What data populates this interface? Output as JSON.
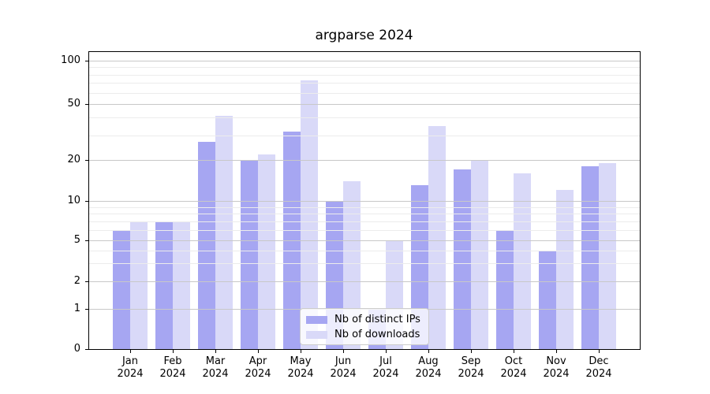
{
  "chart_data": {
    "type": "bar",
    "title": "argparse 2024",
    "categories": [
      "Jan",
      "Feb",
      "Mar",
      "Apr",
      "May",
      "Jun",
      "Jul",
      "Aug",
      "Sep",
      "Oct",
      "Nov",
      "Dec"
    ],
    "category_year": "2024",
    "series": [
      {
        "name": "Nb of distinct IPs",
        "color": "#a6a6f2",
        "values": [
          6,
          7,
          27,
          20,
          32,
          10,
          1,
          13,
          17,
          6,
          4,
          18
        ]
      },
      {
        "name": "Nb of downloads",
        "color": "#d9d9f8",
        "values": [
          7,
          7,
          41,
          22,
          73,
          14,
          5,
          35,
          20,
          16,
          12,
          19
        ]
      }
    ],
    "xlabel": "",
    "ylabel": "",
    "yscale": "symlog",
    "yticks": [
      0,
      1,
      2,
      5,
      10,
      20,
      50,
      100
    ],
    "minor_gridlines": [
      3,
      4,
      6,
      7,
      8,
      9,
      30,
      40,
      60,
      70,
      80,
      90
    ],
    "ylim": [
      0,
      115
    ],
    "grid": true,
    "legend_position": "lower center",
    "colors": {
      "major_grid": "#c8c8c8",
      "minor_grid": "#ececec",
      "axis": "#000000",
      "text": "#000000",
      "background": "#ffffff"
    }
  }
}
